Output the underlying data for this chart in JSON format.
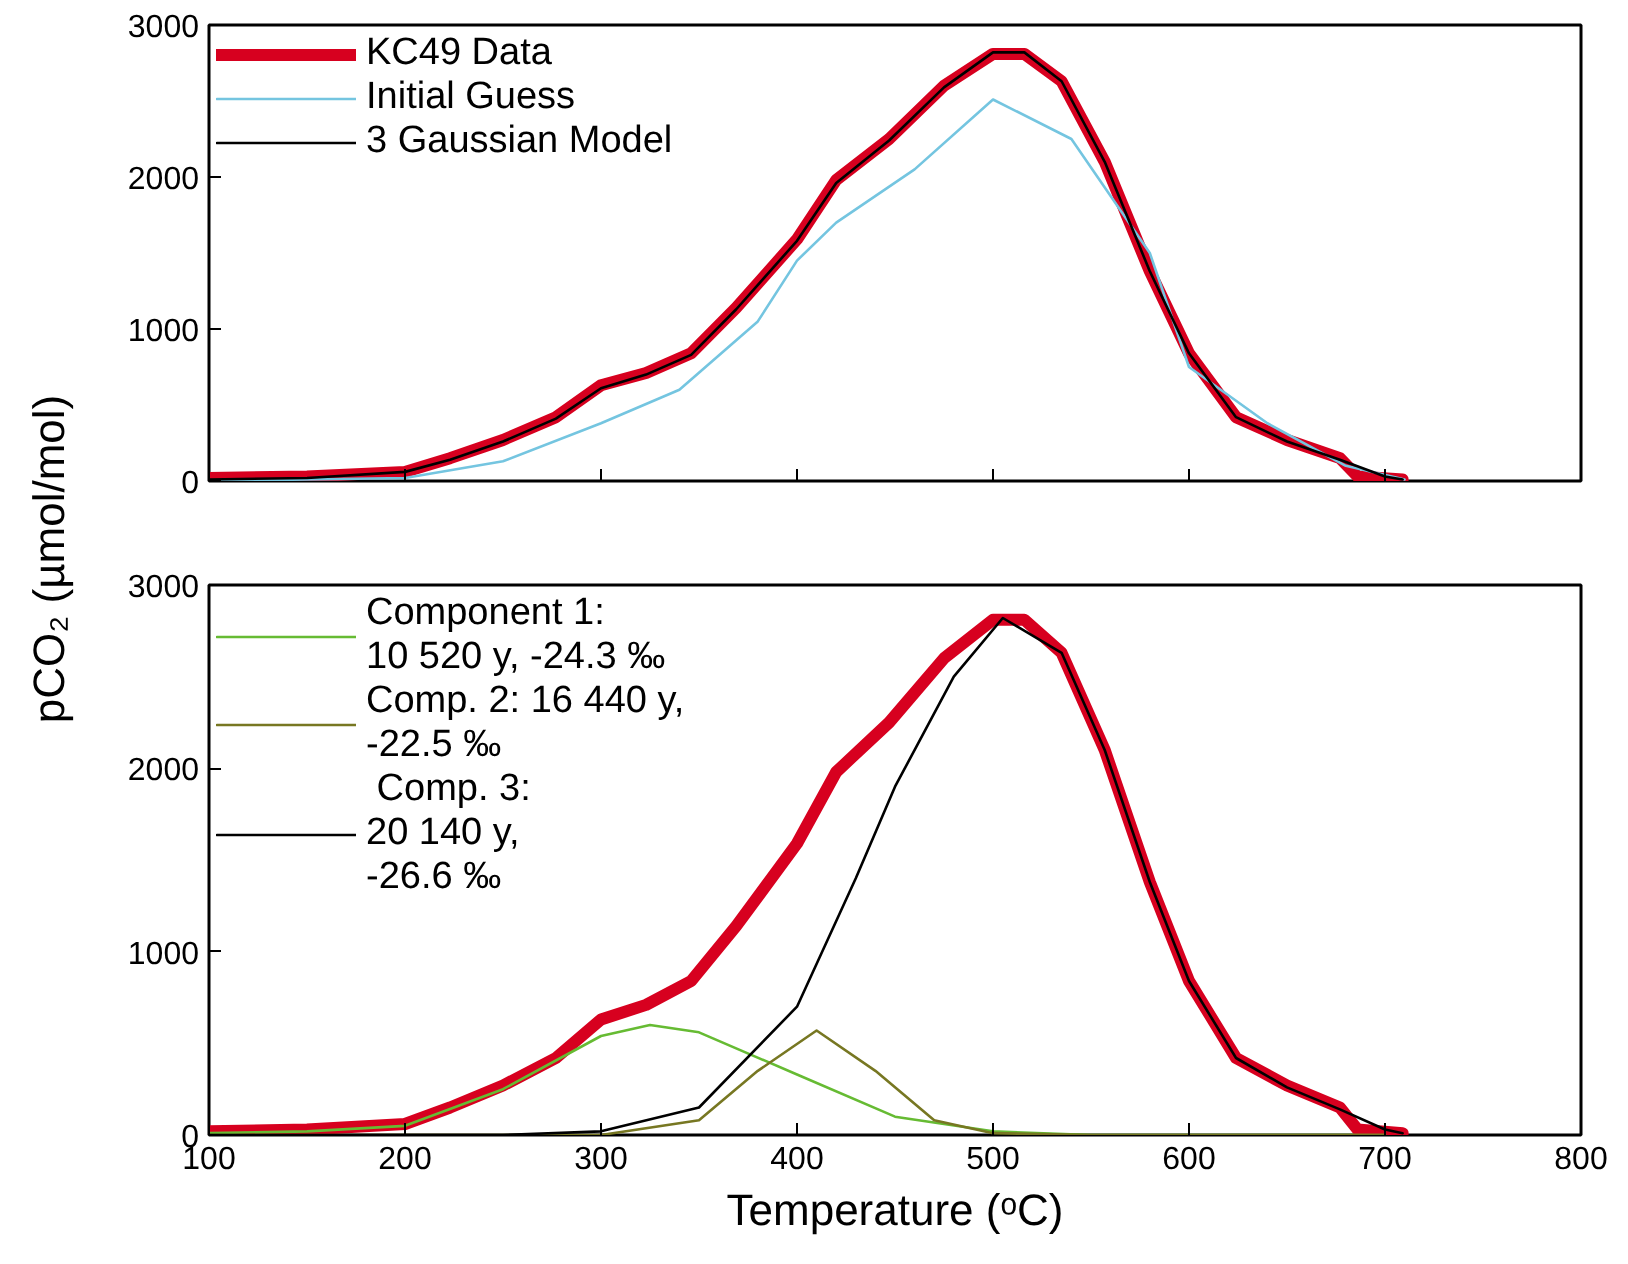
{
  "chart_data": [
    {
      "type": "line",
      "ylabel": "pCO₂ (µmol/mol)",
      "xlim": [
        100,
        800
      ],
      "ylim": [
        0,
        3000
      ],
      "xticks": [
        100,
        200,
        300,
        400,
        500,
        600,
        700,
        800
      ],
      "yticks": [
        0,
        1000,
        2000,
        3000
      ],
      "tick_labels": "y",
      "legend": "top left",
      "grid": false,
      "series": [
        {
          "name": "KC49 Data",
          "color": "#d7001f",
          "x": [
            100,
            150,
            200,
            223,
            250,
            277,
            300,
            323,
            346,
            369,
            400,
            420,
            447,
            475,
            500,
            516,
            535,
            557,
            580,
            600,
            624,
            650,
            677,
            686,
            709
          ],
          "values": [
            20,
            30,
            60,
            150,
            270,
            420,
            630,
            710,
            840,
            1140,
            1590,
            1980,
            2250,
            2600,
            2810,
            2810,
            2630,
            2100,
            1380,
            840,
            420,
            270,
            150,
            30,
            10
          ]
        },
        {
          "name": "Initial Guess",
          "color": "#74c5e0",
          "x": [
            100,
            200,
            250,
            300,
            340,
            380,
            400,
            420,
            460,
            500,
            540,
            580,
            600,
            640,
            680,
            710
          ],
          "values": [
            0,
            20,
            130,
            380,
            600,
            1050,
            1450,
            1700,
            2050,
            2510,
            2250,
            1500,
            750,
            380,
            100,
            10
          ]
        },
        {
          "name": "3 Gaussian Model",
          "color": "#000000",
          "x": [
            100,
            150,
            200,
            223,
            250,
            277,
            300,
            323,
            346,
            369,
            400,
            420,
            447,
            475,
            500,
            516,
            535,
            557,
            580,
            600,
            624,
            650,
            677,
            700,
            709
          ],
          "values": [
            10,
            20,
            60,
            140,
            260,
            410,
            610,
            700,
            830,
            1130,
            1580,
            1960,
            2240,
            2590,
            2820,
            2820,
            2630,
            2100,
            1380,
            840,
            420,
            260,
            140,
            30,
            10
          ]
        }
      ]
    },
    {
      "type": "line",
      "xlabel": "Temperature (ᵒC)",
      "xlim": [
        100,
        800
      ],
      "ylim": [
        0,
        3000
      ],
      "xticks": [
        100,
        200,
        300,
        400,
        500,
        600,
        700,
        800
      ],
      "yticks": [
        0,
        1000,
        2000,
        3000
      ],
      "legend": "top left",
      "grid": false,
      "series": [
        {
          "color": "#d7001f",
          "x": [
            100,
            150,
            200,
            223,
            250,
            277,
            300,
            323,
            346,
            369,
            400,
            420,
            447,
            475,
            500,
            516,
            535,
            557,
            580,
            600,
            624,
            650,
            677,
            686,
            709
          ],
          "values": [
            20,
            30,
            60,
            150,
            270,
            420,
            630,
            710,
            840,
            1140,
            1590,
            1980,
            2250,
            2600,
            2810,
            2810,
            2630,
            2100,
            1380,
            840,
            420,
            270,
            150,
            30,
            10
          ]
        },
        {
          "name": "Component 1:\n10 520 y, -24.3 ‰",
          "color": "#66bb33",
          "x": [
            100,
            150,
            200,
            250,
            300,
            325,
            350,
            400,
            450,
            500,
            550,
            600,
            700
          ],
          "values": [
            10,
            20,
            50,
            250,
            540,
            600,
            560,
            330,
            100,
            20,
            0,
            0,
            0
          ]
        },
        {
          "name": "Comp. 2: 16 440 y,\n-22.5 ‰",
          "color": "#777722",
          "x": [
            100,
            300,
            350,
            380,
            410,
            440,
            470,
            500,
            550,
            700
          ],
          "values": [
            0,
            0,
            80,
            350,
            570,
            350,
            80,
            10,
            0,
            0
          ]
        },
        {
          "name": " Comp. 3:\n20 140 y,\n-26.6 ‰",
          "color": "#000000",
          "x": [
            100,
            250,
            300,
            350,
            400,
            430,
            450,
            480,
            505,
            535,
            557,
            580,
            600,
            624,
            650,
            677,
            700,
            709
          ],
          "values": [
            0,
            0,
            20,
            150,
            700,
            1400,
            1900,
            2500,
            2820,
            2630,
            2100,
            1380,
            840,
            420,
            260,
            140,
            30,
            10
          ]
        }
      ]
    }
  ]
}
